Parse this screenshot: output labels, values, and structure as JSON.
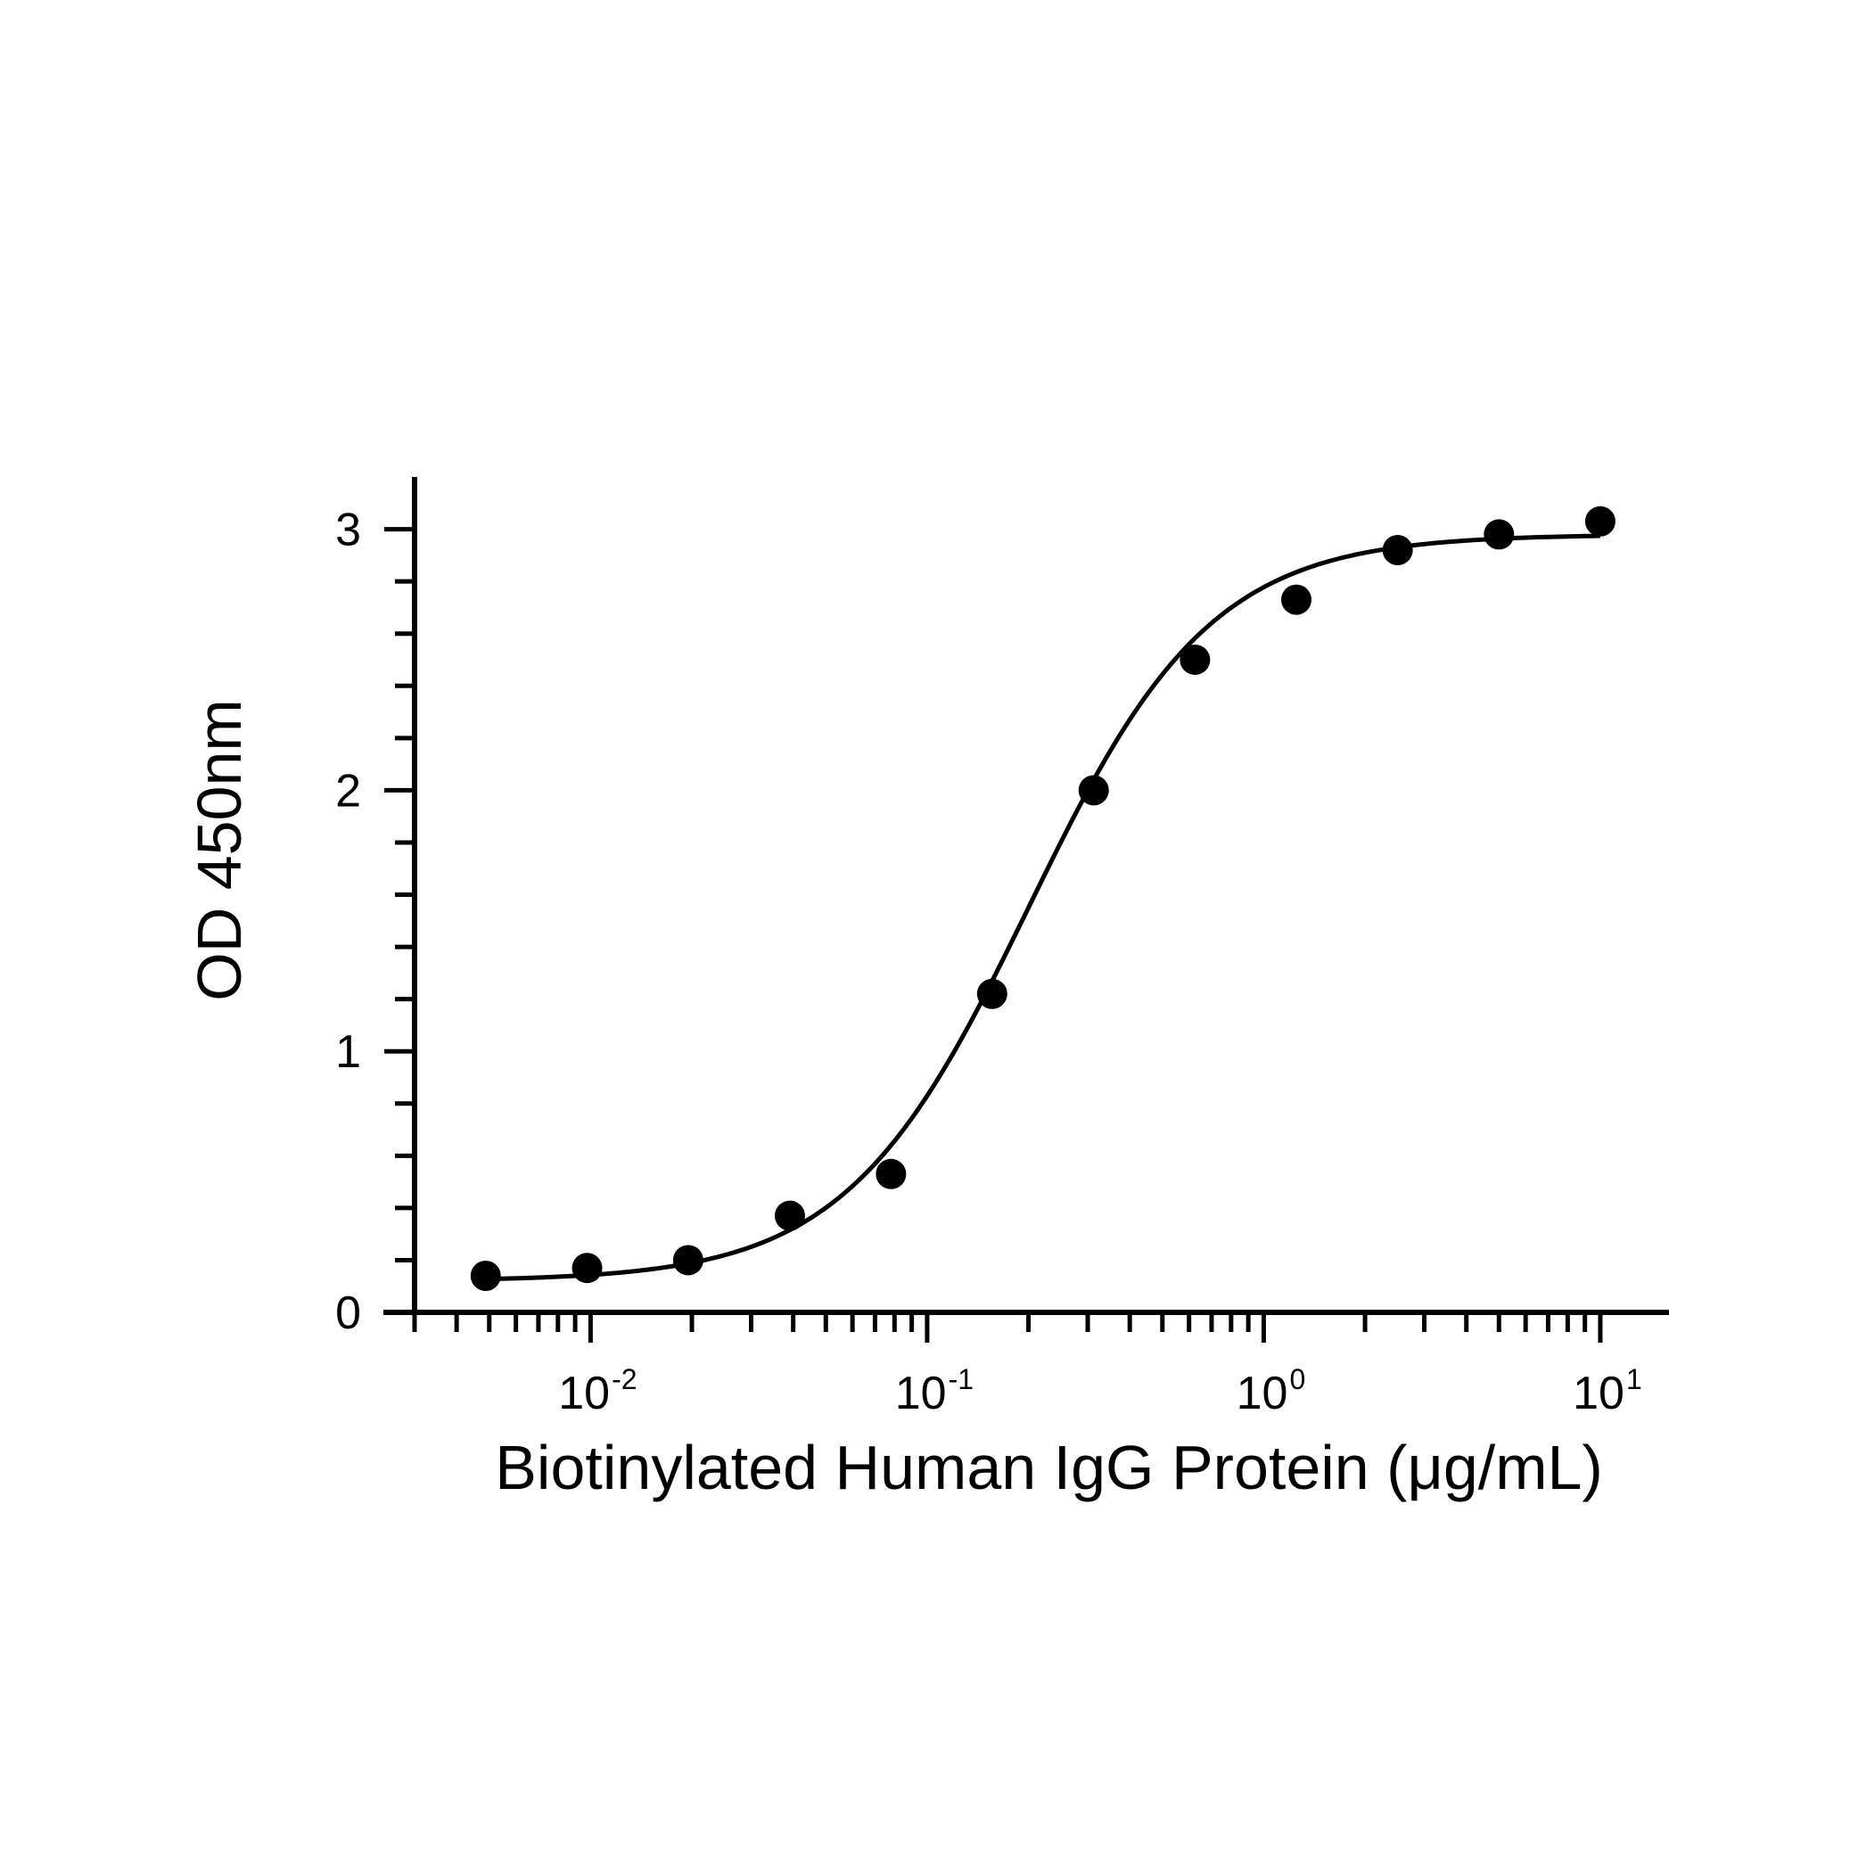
{
  "chart_data": {
    "type": "scatter",
    "title": "",
    "xlabel": "Biotinylated Human IgG Protein (μg/mL)",
    "ylabel": "OD 450nm",
    "x_scale": "log",
    "xlim": [
      0.003,
      16
    ],
    "ylim": [
      0,
      3.2
    ],
    "grid": false,
    "legend": "none",
    "x_ticks": [
      {
        "base": "10",
        "exp": "-2",
        "value": 0.01
      },
      {
        "base": "10",
        "exp": "-1",
        "value": 0.1
      },
      {
        "base": "10",
        "exp": "0",
        "value": 1
      },
      {
        "base": "10",
        "exp": "1",
        "value": 10
      }
    ],
    "y_ticks": [
      "0",
      "1",
      "2",
      "3"
    ],
    "series": [
      {
        "x": [
          0.00488,
          0.00977,
          0.0195,
          0.0391,
          0.0781,
          0.156,
          0.3125,
          0.625,
          1.25,
          2.5,
          5,
          10
        ],
        "y": [
          0.14,
          0.17,
          0.2,
          0.37,
          0.53,
          1.22,
          2.0,
          2.5,
          2.73,
          2.92,
          2.98,
          3.03
        ]
      }
    ],
    "fit": {
      "type": "4PL",
      "bottom": 0.12,
      "top": 2.98,
      "ec50": 0.2,
      "hill": 1.6
    },
    "colors": {
      "points": "#000000",
      "curve": "#000000"
    }
  }
}
